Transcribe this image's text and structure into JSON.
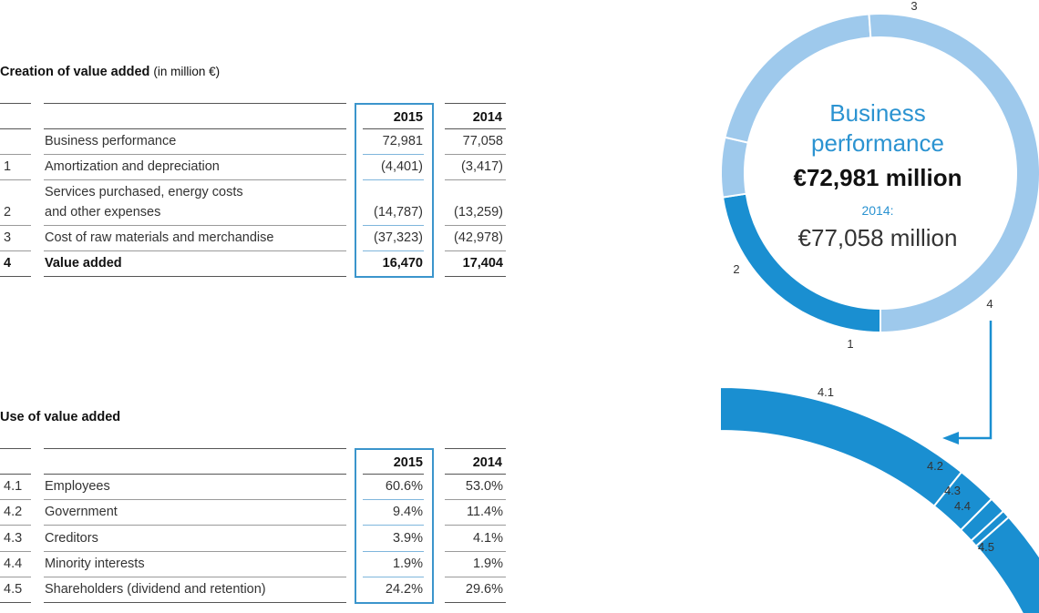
{
  "creation": {
    "title": "Creation of value added",
    "unit": "(in million €)",
    "headers": [
      "2015",
      "2014"
    ],
    "rows": [
      {
        "code": "",
        "label": [
          "Business performance"
        ],
        "v2015": "72,981",
        "v2014": "77,058",
        "bold": false
      },
      {
        "code": "1",
        "label": [
          "Amortization and depreciation"
        ],
        "v2015": "(4,401)",
        "v2014": "(3,417)",
        "bold": false
      },
      {
        "code": "2",
        "label": [
          "Services purchased, energy costs",
          "and other expenses"
        ],
        "v2015": "(14,787)",
        "v2014": "(13,259)",
        "bold": false
      },
      {
        "code": "3",
        "label": [
          "Cost of raw materials and merchandise"
        ],
        "v2015": "(37,323)",
        "v2014": "(42,978)",
        "bold": false
      },
      {
        "code": "4",
        "label": [
          "Value added"
        ],
        "v2015": "16,470",
        "v2014": "17,404",
        "bold": true
      }
    ]
  },
  "use": {
    "title": "Use of value added",
    "headers": [
      "2015",
      "2014"
    ],
    "rows": [
      {
        "code": "4.1",
        "label": "Employees",
        "v2015": "60.6%",
        "v2014": "53.0%"
      },
      {
        "code": "4.2",
        "label": "Government",
        "v2015": "9.4%",
        "v2014": "11.4%"
      },
      {
        "code": "4.3",
        "label": "Creditors",
        "v2015": "3.9%",
        "v2014": "4.1%"
      },
      {
        "code": "4.4",
        "label": "Minority interests",
        "v2015": "1.9%",
        "v2014": "1.9%"
      },
      {
        "code": "4.5",
        "label": "Shareholders (dividend and retention)",
        "v2015": "24.2%",
        "v2014": "29.6%"
      }
    ]
  },
  "center": {
    "line1": "Business",
    "line2": "performance",
    "value": "€72,981 million",
    "prior_label": "2014:",
    "prior_value": "€77,058 million"
  },
  "chart_data": [
    {
      "type": "pie",
      "style": "donut",
      "slices": [
        {
          "label": "4",
          "value": 16470,
          "color": "#1a8fd1"
        },
        {
          "label": "1",
          "value": 4401,
          "color": "#9ec9ec"
        },
        {
          "label": "2",
          "value": 14787,
          "color": "#9ec9ec"
        },
        {
          "label": "3",
          "value": 37323,
          "color": "#9ec9ec"
        }
      ],
      "total": 72981
    },
    {
      "type": "pie",
      "style": "partial-ring",
      "slices": [
        {
          "label": "4.1",
          "value": 60.6,
          "color": "#1a8fd1"
        },
        {
          "label": "4.2",
          "value": 9.4,
          "color": "#1a8fd1"
        },
        {
          "label": "4.3",
          "value": 3.9,
          "color": "#1a8fd1"
        },
        {
          "label": "4.4",
          "value": 1.9,
          "color": "#1a8fd1"
        },
        {
          "label": "4.5",
          "value": 24.2,
          "color": "#1a8fd1"
        }
      ]
    }
  ]
}
